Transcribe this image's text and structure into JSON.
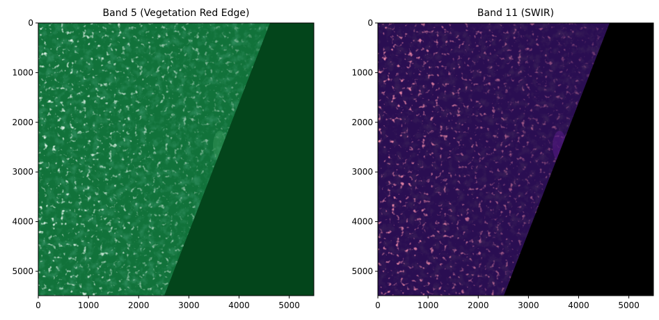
{
  "panels": [
    {
      "title": "Band 5 (Vegetation Red Edge)",
      "colormap": "Greens",
      "colors": {
        "base": "#11723a",
        "dark": "#0d5f2f",
        "nodata": "#03451b",
        "highlight": "#c6ebd6"
      },
      "x_ticks": [
        "0",
        "1000",
        "2000",
        "3000",
        "4000",
        "5000"
      ],
      "y_ticks": [
        "0",
        "1000",
        "2000",
        "3000",
        "4000",
        "5000"
      ]
    },
    {
      "title": "Band 11 (SWIR)",
      "colormap": "magma",
      "colors": {
        "base": "#2a0e52",
        "dark": "#170834",
        "nodata": "#000000",
        "highlight": "#c93a63"
      },
      "x_ticks": [
        "0",
        "1000",
        "2000",
        "3000",
        "4000",
        "5000"
      ],
      "y_ticks": [
        "0",
        "1000",
        "2000",
        "3000",
        "4000",
        "5000"
      ]
    }
  ],
  "chart_data": {
    "type": "image",
    "extent": {
      "x": [
        0,
        5490
      ],
      "y": [
        5490,
        0
      ]
    },
    "swath_edge": [
      [
        4620,
        0
      ],
      [
        2520,
        5490
      ]
    ]
  }
}
